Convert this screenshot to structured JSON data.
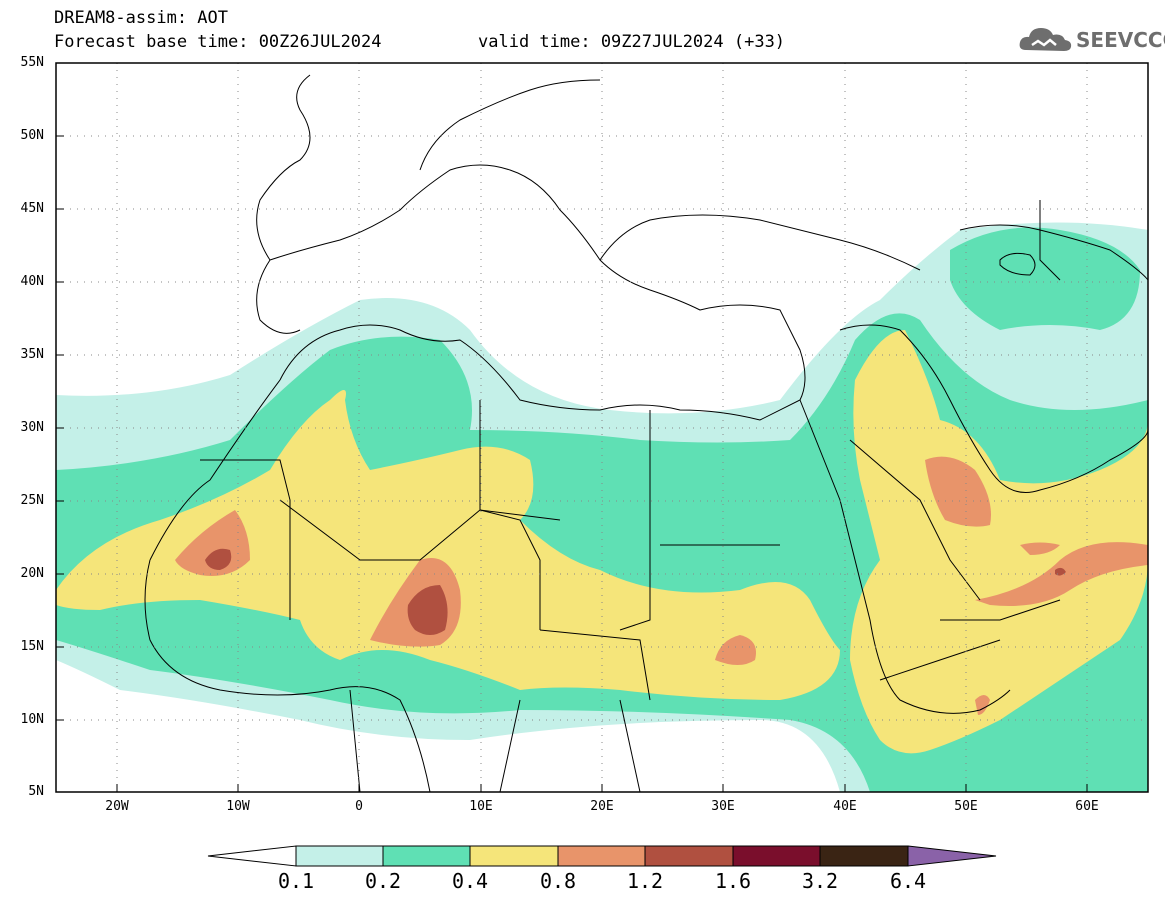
{
  "header": {
    "line1": "DREAM8-assim: AOT",
    "line2": "Forecast base time: 00Z26JUL2024",
    "line3": "valid time: 09Z27JUL2024 (+33)"
  },
  "logo": {
    "text": "SEEVCCC",
    "icon": "cloud-icon"
  },
  "axes": {
    "y_labels": [
      "55N",
      "50N",
      "45N",
      "40N",
      "35N",
      "30N",
      "25N",
      "20N",
      "15N",
      "10N",
      "5N"
    ],
    "x_labels": [
      "20W",
      "10W",
      "0",
      "10E",
      "20E",
      "30E",
      "40E",
      "50E",
      "60E"
    ]
  },
  "colorbar": {
    "labels": [
      "0.1",
      "0.2",
      "0.4",
      "0.8",
      "1.2",
      "1.6",
      "3.2",
      "6.4"
    ],
    "colors": [
      "#ffffff",
      "#c4f0e8",
      "#5fe0b4",
      "#f5e57a",
      "#e8946a",
      "#b05040",
      "#7a0e2c",
      "#3a2414",
      "#8a62a8"
    ]
  },
  "colors": {
    "c01": "#c4f0e8",
    "c02": "#5fe0b4",
    "c04": "#f5e57a",
    "c08": "#e8946a",
    "c12": "#b05040"
  }
}
